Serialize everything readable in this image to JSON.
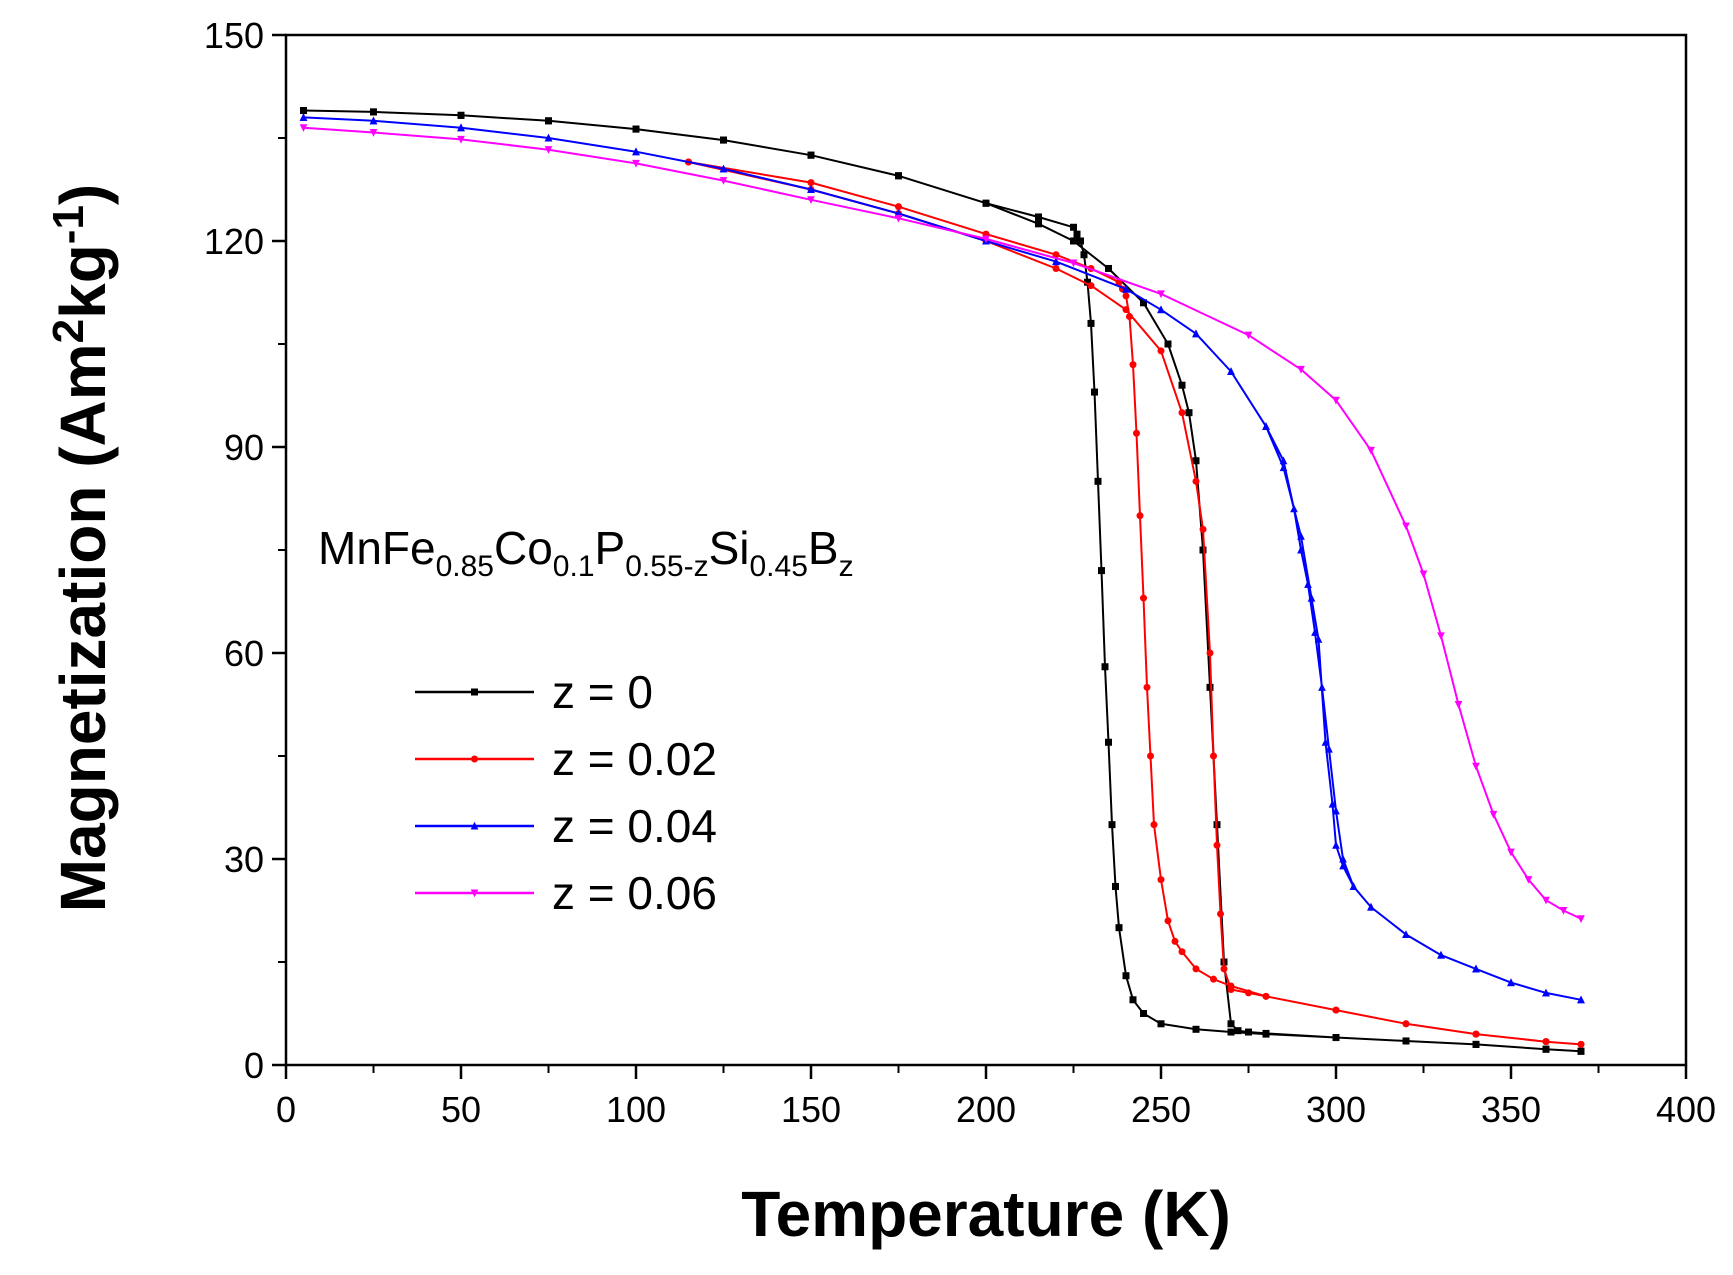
{
  "chart_data": {
    "type": "line",
    "title": "",
    "xlabel": "Temperature (K)",
    "ylabel_main": "Magnetization (Am",
    "ylabel_sup1": "2",
    "ylabel_mid": "kg",
    "ylabel_sup2": "-1",
    "ylabel_end": ")",
    "xlim": [
      0,
      400
    ],
    "ylim": [
      0,
      150
    ],
    "xticks": [
      0,
      50,
      100,
      150,
      200,
      250,
      300,
      350,
      400
    ],
    "yticks": [
      0,
      30,
      60,
      90,
      120,
      150
    ],
    "grid": false,
    "legend_position": "center-left",
    "annotation": {
      "base1": "MnFe",
      "sub1": "0.85",
      "base2": "Co",
      "sub2": "0.1",
      "base3": "P",
      "sub3": "0.55-z",
      "base4": "Si",
      "sub4": "0.45",
      "base5": "B",
      "sub5": "z"
    },
    "series": [
      {
        "name": "z = 0",
        "color": "#000000",
        "marker": "square",
        "x": [
          5,
          25,
          50,
          75,
          100,
          125,
          150,
          175,
          200,
          215,
          225,
          235,
          245,
          252,
          256,
          258,
          260,
          262,
          264,
          266,
          268,
          270,
          272,
          275,
          280,
          300,
          320,
          340,
          360,
          370,
          370,
          360,
          340,
          320,
          300,
          280,
          270,
          260,
          250,
          245,
          242,
          240,
          238,
          237,
          236,
          235,
          234,
          233,
          232,
          231,
          230,
          229,
          228,
          227,
          226,
          225,
          215,
          200,
          175,
          150,
          125,
          100,
          75,
          50,
          25,
          5
        ],
        "y": [
          139,
          138.8,
          138.3,
          137.5,
          136.3,
          134.7,
          132.5,
          129.5,
          125.5,
          122.5,
          120,
          116,
          111,
          105,
          99,
          95,
          88,
          75,
          55,
          35,
          15,
          6,
          5,
          4.8,
          4.6,
          4.0,
          3.5,
          3.0,
          2.3,
          2.0,
          2.0,
          2.3,
          3.0,
          3.5,
          4.0,
          4.5,
          4.8,
          5.2,
          6.0,
          7.5,
          9.5,
          13,
          20,
          26,
          35,
          47,
          58,
          72,
          85,
          98,
          108,
          114,
          118,
          120,
          121,
          122,
          123.5,
          125.5,
          129.5,
          132.5,
          134.7,
          136.3,
          137.5,
          138.3,
          138.8,
          139
        ]
      },
      {
        "name": "z = 0.02",
        "color": "#ff0000",
        "marker": "circle",
        "x": [
          115,
          150,
          175,
          200,
          220,
          230,
          240,
          250,
          256,
          260,
          262,
          264,
          265,
          266,
          267,
          268,
          270,
          275,
          280,
          300,
          320,
          340,
          360,
          370,
          370,
          360,
          340,
          320,
          300,
          280,
          270,
          265,
          260,
          256,
          254,
          252,
          250,
          248,
          247,
          246,
          245,
          244,
          243,
          242,
          241,
          240,
          239,
          238,
          230,
          220,
          200,
          175,
          150,
          115
        ],
        "y": [
          131.5,
          127.5,
          124,
          120,
          116,
          113.5,
          110,
          104,
          95,
          85,
          78,
          60,
          45,
          32,
          22,
          14,
          11,
          10.5,
          10,
          8,
          6,
          4.5,
          3.4,
          3.0,
          3.0,
          3.4,
          4.5,
          6,
          8,
          10,
          11.5,
          12.5,
          14,
          16.5,
          18,
          21,
          27,
          35,
          45,
          55,
          68,
          80,
          92,
          102,
          109,
          112,
          113,
          114,
          116,
          118,
          121,
          125,
          128.5,
          131.5
        ]
      },
      {
        "name": "z = 0.04",
        "color": "#0000ff",
        "marker": "triangle-up",
        "x": [
          5,
          25,
          50,
          75,
          100,
          125,
          150,
          175,
          200,
          220,
          240,
          250,
          260,
          270,
          280,
          285,
          290,
          293,
          295,
          297,
          299,
          300,
          302,
          305,
          310,
          320,
          330,
          340,
          350,
          360,
          370,
          370,
          360,
          350,
          340,
          330,
          320,
          310,
          305,
          302,
          300,
          298,
          296,
          294,
          292,
          290,
          288,
          285,
          280,
          270,
          260,
          250,
          240,
          220,
          200,
          175,
          150,
          125,
          100,
          75,
          50,
          25,
          5
        ],
        "y": [
          138,
          137.5,
          136.5,
          135,
          133,
          130.5,
          127.5,
          124,
          120,
          117,
          113,
          110,
          106.5,
          101,
          93,
          87,
          77,
          68,
          62,
          47,
          38,
          32,
          29,
          26,
          23,
          19,
          16,
          14,
          12,
          10.5,
          9.5,
          9.5,
          10.5,
          12,
          14,
          16,
          19,
          23,
          26,
          30,
          37,
          46,
          55,
          63,
          70,
          75,
          81,
          88,
          93,
          101,
          106.5,
          110,
          113,
          117,
          120,
          124,
          127.5,
          130.5,
          133,
          135,
          136.5,
          137.5,
          138
        ]
      },
      {
        "name": "z = 0.06",
        "color": "#ff00ff",
        "marker": "triangle-down",
        "x": [
          5,
          25,
          50,
          75,
          100,
          125,
          150,
          175,
          200,
          225,
          250,
          275,
          290,
          300,
          310,
          320,
          325,
          330,
          335,
          340,
          345,
          350,
          355,
          360,
          365,
          370
        ],
        "y": [
          136.5,
          135.8,
          134.8,
          133.3,
          131.3,
          128.8,
          126,
          123.3,
          120.3,
          116.8,
          112.3,
          106.3,
          101.3,
          96.8,
          89.5,
          78.5,
          71.5,
          62.5,
          52.5,
          43.5,
          36.5,
          31,
          27,
          24,
          22.5,
          21.3
        ]
      }
    ]
  }
}
